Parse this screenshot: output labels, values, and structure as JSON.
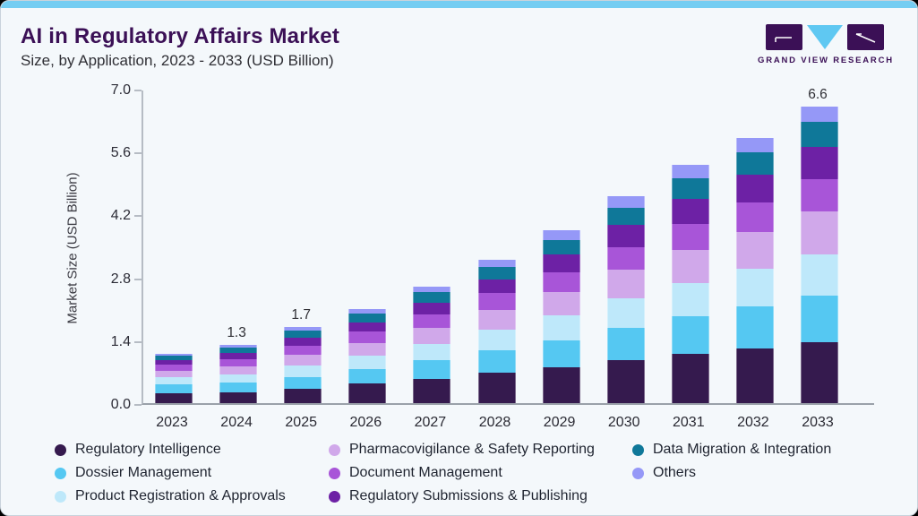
{
  "header": {
    "title": "AI in Regulatory Affairs Market",
    "subtitle": "Size, by Application, 2023 - 2033 (USD Billion)"
  },
  "logo": {
    "text": "GRAND VIEW RESEARCH",
    "brand_purple": "#3b1056",
    "brand_blue": "#5fc8f2"
  },
  "chart_data": {
    "type": "bar",
    "stacked": true,
    "title": "AI in Regulatory Affairs Market Size, by Application, 2023 - 2033 (USD Billion)",
    "xlabel": "",
    "ylabel": "Market Size (USD Billion)",
    "ylim": [
      0,
      7.0
    ],
    "yticks": [
      0.0,
      1.4,
      2.8,
      4.2,
      5.6,
      7.0
    ],
    "grid": false,
    "legend_position": "bottom",
    "categories": [
      "2023",
      "2024",
      "2025",
      "2026",
      "2027",
      "2028",
      "2029",
      "2030",
      "2031",
      "2032",
      "2033"
    ],
    "series": [
      {
        "name": "Regulatory Intelligence",
        "color": "#351a4e",
        "values": [
          0.22,
          0.24,
          0.31,
          0.43,
          0.54,
          0.67,
          0.8,
          0.95,
          1.1,
          1.22,
          1.36
        ]
      },
      {
        "name": "Dossier Management",
        "color": "#55c8f2",
        "values": [
          0.19,
          0.21,
          0.27,
          0.33,
          0.41,
          0.51,
          0.6,
          0.72,
          0.83,
          0.93,
          1.03
        ]
      },
      {
        "name": "Product Registration & Approvals",
        "color": "#bee8fa",
        "values": [
          0.16,
          0.19,
          0.25,
          0.3,
          0.37,
          0.46,
          0.55,
          0.66,
          0.75,
          0.84,
          0.92
        ]
      },
      {
        "name": "Pharmacovigilance & Safety Reporting",
        "color": "#d0a8ea",
        "values": [
          0.15,
          0.18,
          0.24,
          0.28,
          0.35,
          0.43,
          0.53,
          0.64,
          0.73,
          0.82,
          0.95
        ]
      },
      {
        "name": "Document Management",
        "color": "#a855d8",
        "values": [
          0.13,
          0.16,
          0.21,
          0.26,
          0.31,
          0.38,
          0.43,
          0.51,
          0.58,
          0.65,
          0.72
        ]
      },
      {
        "name": "Regulatory Submissions & Publishing",
        "color": "#6d21a5",
        "values": [
          0.1,
          0.13,
          0.17,
          0.2,
          0.25,
          0.31,
          0.41,
          0.49,
          0.56,
          0.63,
          0.73
        ]
      },
      {
        "name": "Data Migration & Integration",
        "color": "#0f7899",
        "values": [
          0.1,
          0.13,
          0.17,
          0.2,
          0.24,
          0.28,
          0.32,
          0.38,
          0.45,
          0.5,
          0.56
        ]
      },
      {
        "name": "Others",
        "color": "#9598f7",
        "values": [
          0.05,
          0.06,
          0.08,
          0.1,
          0.13,
          0.16,
          0.21,
          0.25,
          0.3,
          0.31,
          0.33
        ]
      }
    ],
    "totals": [
      1.1,
      1.3,
      1.7,
      2.1,
      2.6,
      3.2,
      3.85,
      4.6,
      5.3,
      5.9,
      6.6
    ],
    "total_labels": [
      "",
      "1.3",
      "1.7",
      "",
      "",
      "",
      "",
      "",
      "",
      "",
      "6.6"
    ]
  },
  "legend": {
    "columns": [
      [
        {
          "label": "Regulatory Intelligence",
          "color": "#351a4e"
        },
        {
          "label": "Dossier Management",
          "color": "#55c8f2"
        },
        {
          "label": "Product Registration & Approvals",
          "color": "#bee8fa"
        }
      ],
      [
        {
          "label": "Pharmacovigilance & Safety Reporting",
          "color": "#d0a8ea"
        },
        {
          "label": "Document Management",
          "color": "#a855d8"
        },
        {
          "label": "Regulatory Submissions & Publishing",
          "color": "#6d21a5"
        }
      ],
      [
        {
          "label": "Data Migration & Integration",
          "color": "#0f7899"
        },
        {
          "label": "Others",
          "color": "#9598f7"
        }
      ]
    ]
  }
}
